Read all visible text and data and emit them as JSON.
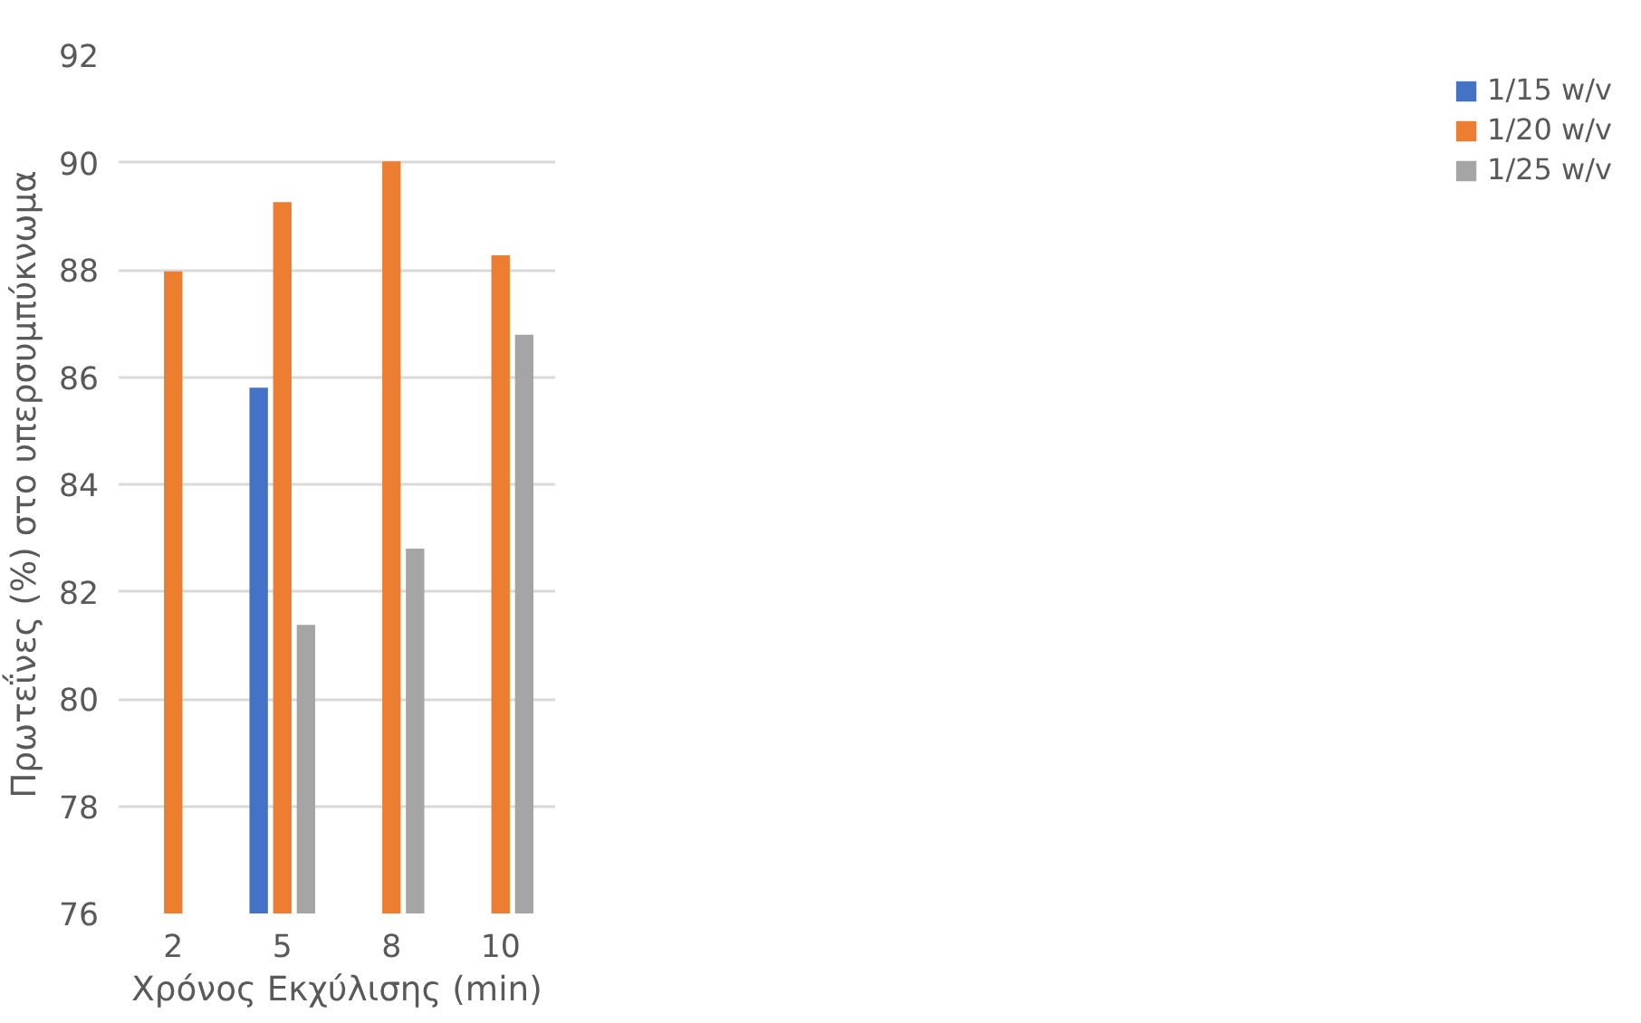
{
  "chart_data": {
    "type": "bar",
    "xlabel": "Χρόνος Εκχύλισης (min)",
    "ylabel": "Πρωτεΐνες (%) στο υπερσυμπύκνωμα",
    "categories": [
      "2",
      "5",
      "8",
      "10"
    ],
    "series": [
      {
        "name": "1/15 w/v",
        "color": "#4472c4",
        "values": [
          null,
          85.8,
          null,
          null
        ]
      },
      {
        "name": "1/20 w/v",
        "color": "#ed7d31",
        "values": [
          87.97,
          89.26,
          90.02,
          88.27
        ]
      },
      {
        "name": "1/25 w/v",
        "color": "#a5a5a5",
        "values": [
          null,
          81.38,
          82.8,
          86.79
        ]
      }
    ],
    "ylim": [
      76,
      92
    ],
    "yticks": [
      76,
      78,
      80,
      82,
      84,
      86,
      88,
      90,
      92
    ],
    "grid": "y",
    "legend": "right"
  }
}
